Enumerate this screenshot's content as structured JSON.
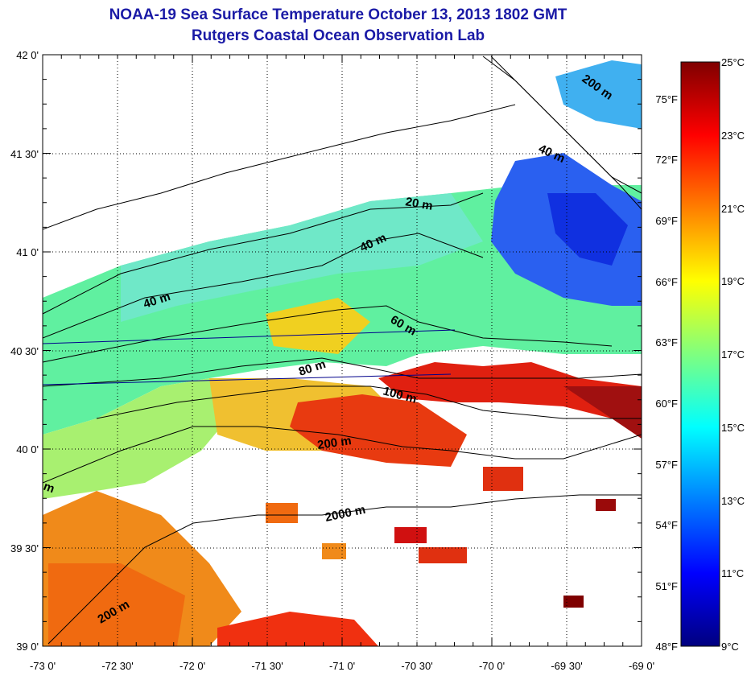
{
  "title": "NOAA-19 Sea Surface Temperature October 13, 2013 1802 GMT",
  "subtitle": "Rutgers Coastal Ocean Observation Lab",
  "axes": {
    "lon_labels": [
      "-73 0'",
      "-72 30'",
      "-72 0'",
      "-71 30'",
      "-71 0'",
      "-70 30'",
      "-70 0'",
      "-69 30'",
      "-69 0'"
    ],
    "lat_labels": [
      "42 0'",
      "41 30'",
      "41 0'",
      "40 30'",
      "40 0'",
      "39 30'",
      "39 0'"
    ],
    "lon_range": [
      -73,
      -69
    ],
    "lat_range": [
      39,
      42
    ],
    "grid": "dotted"
  },
  "colorbar": {
    "celsius_labels": [
      "25°C",
      "23°C",
      "21°C",
      "19°C",
      "17°C",
      "15°C",
      "13°C",
      "11°C",
      "9°C"
    ],
    "fahrenheit_labels": [
      "75°F",
      "72°F",
      "69°F",
      "66°F",
      "63°F",
      "60°F",
      "57°F",
      "54°F",
      "51°F",
      "48°F"
    ],
    "range_c": [
      9,
      25
    ],
    "colors": [
      "#00007f",
      "#0000ff",
      "#007fff",
      "#00ffff",
      "#7fff7f",
      "#ffff00",
      "#ff7f00",
      "#ff0000",
      "#7f0000"
    ]
  },
  "contour_labels": [
    "200 m",
    "40 m",
    "20 m",
    "40 m",
    "40 m",
    "60 m",
    "80 m",
    "100 m",
    "200 m",
    "m",
    "2000 m",
    "200 m"
  ]
}
